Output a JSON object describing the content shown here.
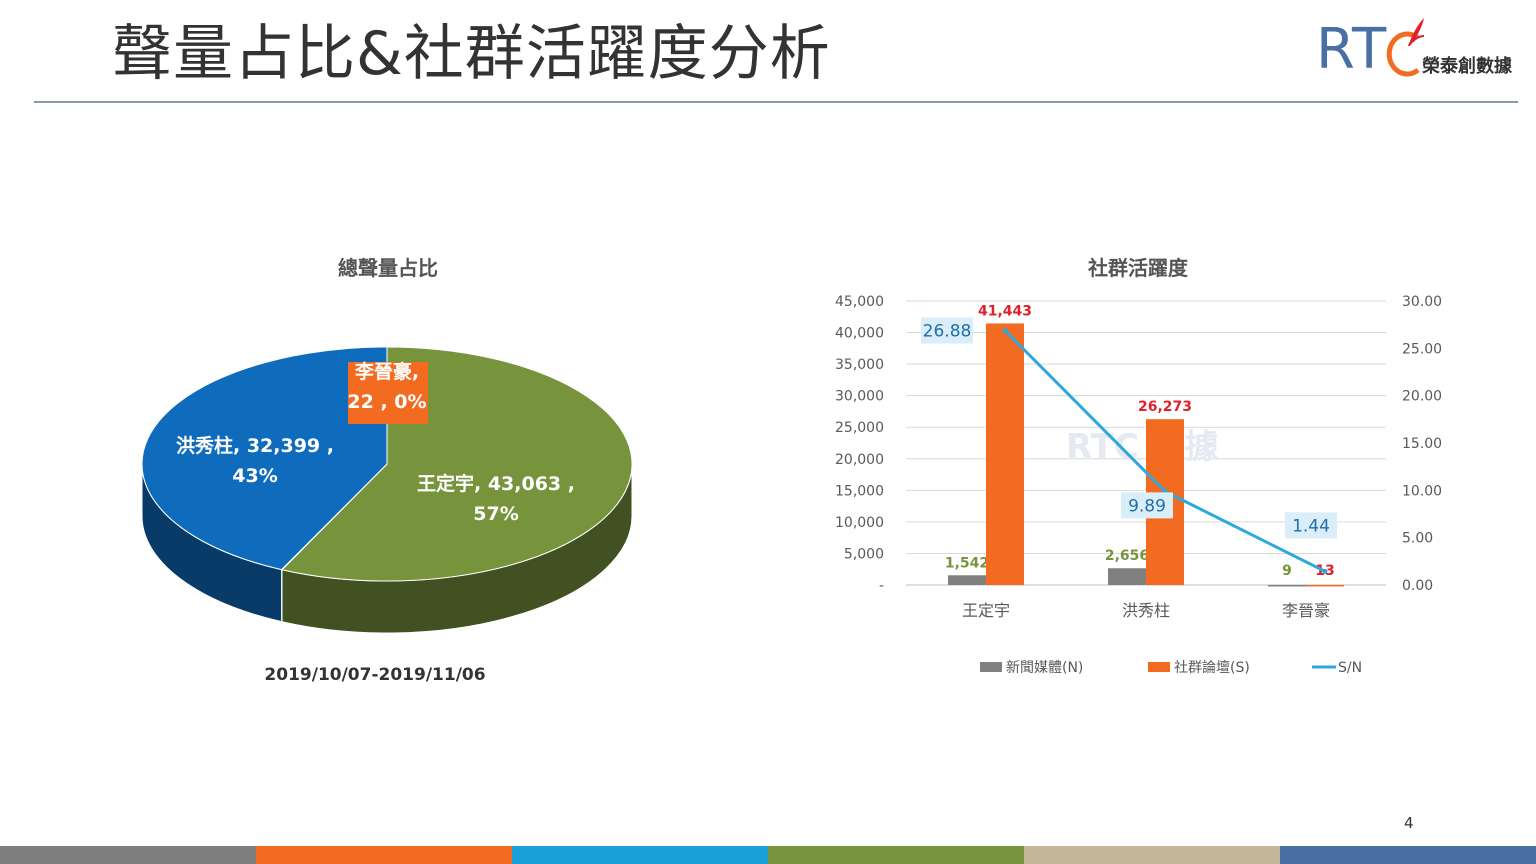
{
  "header": {
    "title": "聲量占比&社群活躍度分析"
  },
  "logo": {
    "letter_r": "R",
    "letter_t": "T",
    "name": "榮泰創數據",
    "watermark": "RTC 數據"
  },
  "footer": {
    "page_number": "4",
    "colors": [
      "#7f7f7f",
      "#f26b21",
      "#1ba1d8",
      "#77933c",
      "#c4b89a",
      "#4a6fa5"
    ]
  },
  "pie": {
    "date_range": "2019/10/07-2019/11/06"
  },
  "chart_data": [
    {
      "type": "pie",
      "title": "總聲量占比",
      "slices": [
        {
          "name": "王定宇",
          "value": 43063,
          "percent": "57%",
          "label": "王定宇, 43,063 ,",
          "label2": "57%",
          "color": "#77933c"
        },
        {
          "name": "李晉豪",
          "value": 22,
          "percent": "0%",
          "label": "李晉豪,",
          "label2": "22 , 0%",
          "color": "#f26b21"
        },
        {
          "name": "洪秀柱",
          "value": 32399,
          "percent": "43%",
          "label": "洪秀柱, 32,399 ,",
          "label2": "43%",
          "color": "#0f6cbd"
        }
      ]
    },
    {
      "type": "bar",
      "title": "社群活躍度",
      "categories": [
        "王定宇",
        "洪秀柱",
        "李晉豪"
      ],
      "series": [
        {
          "name": "新聞媒體(N)",
          "values": [
            1542,
            2656,
            9
          ],
          "labels": [
            "1,542",
            "2,656",
            "9"
          ],
          "color": "#808080",
          "label_color": "#77933c"
        },
        {
          "name": "社群論壇(S)",
          "values": [
            41443,
            26273,
            13
          ],
          "labels": [
            "41,443",
            "26,273",
            "13"
          ],
          "color": "#f26b21",
          "label_color": "#e0202a"
        },
        {
          "name": "S/N",
          "type": "line",
          "axis": "right",
          "values": [
            26.88,
            9.89,
            1.44
          ],
          "labels": [
            "26.88",
            "9.89",
            "1.44"
          ],
          "color": "#2ea7dd"
        }
      ],
      "y_left": {
        "ylim": [
          0,
          45000
        ],
        "ticks": [
          "-",
          "5,000",
          "10,000",
          "15,000",
          "20,000",
          "25,000",
          "30,000",
          "35,000",
          "40,000",
          "45,000"
        ]
      },
      "y_right": {
        "ylim": [
          0,
          30
        ],
        "ticks": [
          "0.00",
          "5.00",
          "10.00",
          "15.00",
          "20.00",
          "25.00",
          "30.00"
        ]
      },
      "grid": true,
      "legend": "bottom"
    }
  ]
}
